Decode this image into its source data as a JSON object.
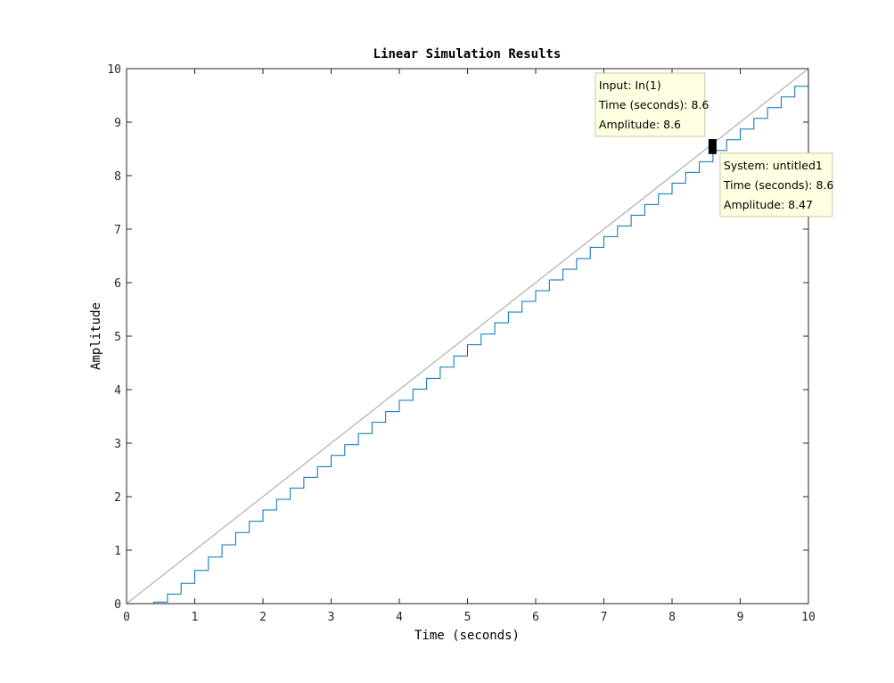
{
  "chart_data": {
    "type": "line",
    "title": "Linear Simulation Results",
    "xlabel": "Time (seconds)",
    "ylabel": "Amplitude",
    "xlim": [
      0,
      10
    ],
    "ylim": [
      0,
      10
    ],
    "xticks": [
      "0",
      "1",
      "2",
      "3",
      "4",
      "5",
      "6",
      "7",
      "8",
      "9",
      "10"
    ],
    "yticks": [
      "0",
      "1",
      "2",
      "3",
      "4",
      "5",
      "6",
      "7",
      "8",
      "9",
      "10"
    ],
    "grid": false,
    "legend": "none",
    "series": [
      {
        "kind": "input",
        "style": "line",
        "color": "#a0a0a0",
        "x": [
          0,
          10
        ],
        "y": [
          0,
          10
        ]
      },
      {
        "kind": "output",
        "style": "stairs",
        "color": "#0072bd",
        "step": 0.2,
        "x": [
          0,
          0.2,
          0.4,
          0.6,
          0.8,
          1.0,
          1.2,
          1.4,
          1.6,
          1.8,
          2.0,
          2.2,
          2.4,
          2.6,
          2.8,
          3.0,
          3.2,
          3.4,
          3.6,
          3.8,
          4.0,
          4.2,
          4.4,
          4.6,
          4.8,
          5.0,
          5.2,
          5.4,
          5.6,
          5.8,
          6.0,
          6.2,
          6.4,
          6.6,
          6.8,
          7.0,
          7.2,
          7.4,
          7.6,
          7.8,
          8.0,
          8.2,
          8.4,
          8.6,
          8.8,
          9.0,
          9.2,
          9.4,
          9.6,
          9.8,
          10.0
        ],
        "y": [
          0,
          0,
          0.03,
          0.18,
          0.38,
          0.62,
          0.87,
          1.1,
          1.33,
          1.54,
          1.75,
          1.95,
          2.16,
          2.36,
          2.56,
          2.77,
          2.97,
          3.18,
          3.39,
          3.59,
          3.8,
          4.01,
          4.21,
          4.42,
          4.63,
          4.84,
          5.04,
          5.25,
          5.45,
          5.65,
          5.85,
          6.05,
          6.25,
          6.45,
          6.66,
          6.86,
          7.06,
          7.26,
          7.46,
          7.66,
          7.86,
          8.06,
          8.26,
          8.47,
          8.67,
          8.87,
          9.07,
          9.27,
          9.47,
          9.67,
          9.87
        ]
      }
    ],
    "datatips": [
      {
        "x": 8.6,
        "y": 8.6,
        "lines": [
          "Input: In(1)",
          "Time (seconds): 8.6",
          "Amplitude: 8.6"
        ]
      },
      {
        "x": 8.6,
        "y": 8.47,
        "lines": [
          "System: untitled1",
          "Time (seconds): 8.6",
          "Amplitude: 8.47"
        ]
      }
    ]
  }
}
